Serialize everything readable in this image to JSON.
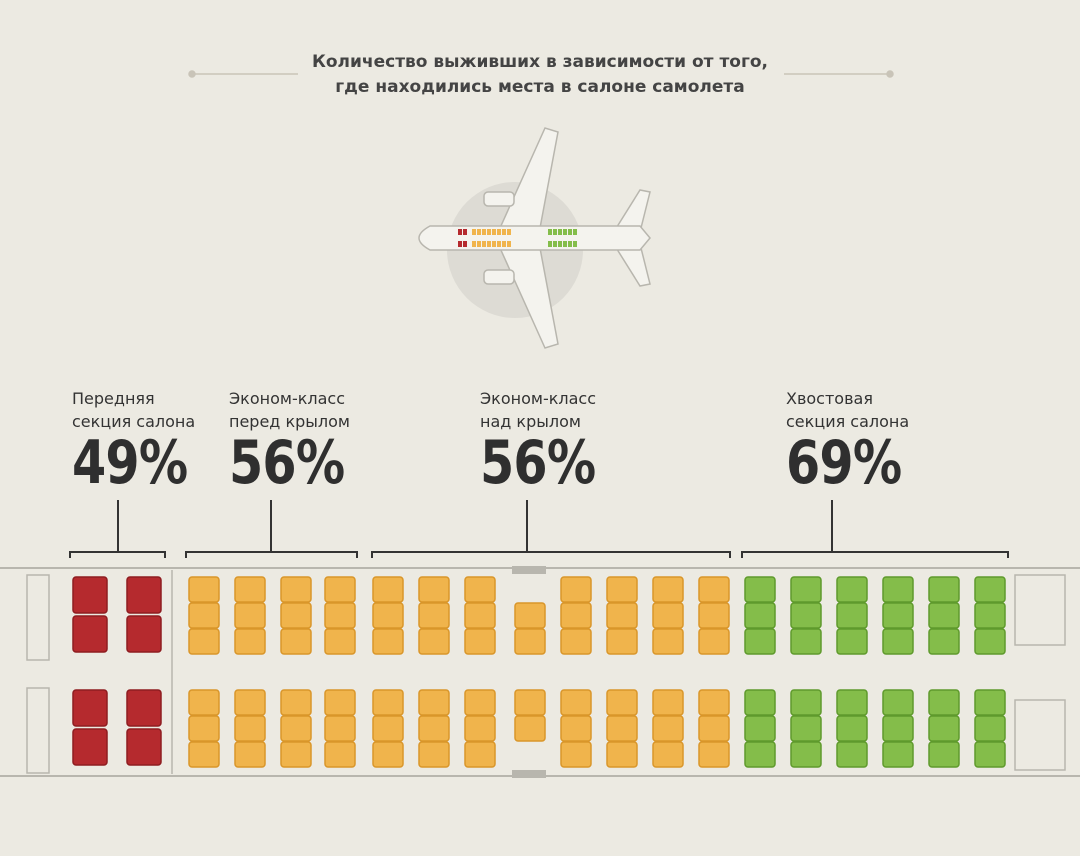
{
  "title": [
    "Количество выживших в зависимости от того,",
    "где находились места в салоне самолета"
  ],
  "sections": [
    {
      "label": [
        "Передняя",
        "секция салона"
      ],
      "value": "49%"
    },
    {
      "label": [
        "Эконом-класс",
        "перед крылом"
      ],
      "value": "56%"
    },
    {
      "label": [
        "Эконом-класс",
        "над крылом"
      ],
      "value": "56%"
    },
    {
      "label": [
        "Хвостовая",
        "секция салона"
      ],
      "value": "69%"
    }
  ]
}
